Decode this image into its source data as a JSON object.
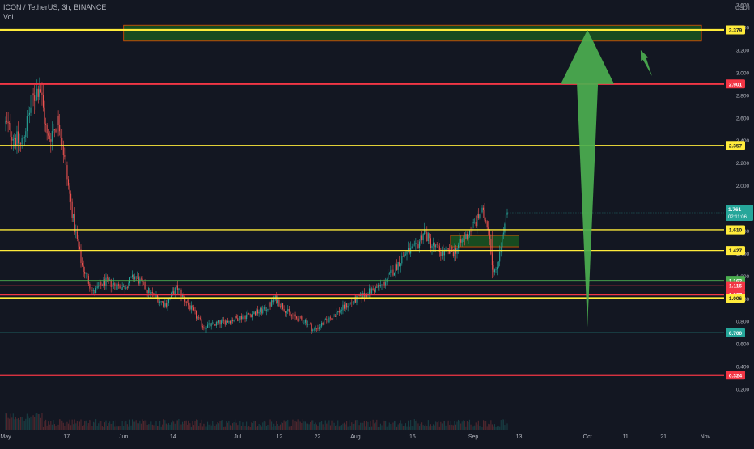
{
  "header": {
    "title": "ICON / TetherUS, 3h, BINANCE",
    "volume_label": "Vol",
    "currency": "USDT"
  },
  "chart_data": {
    "type": "candlestick",
    "symbol": "ICON / TetherUS",
    "interval": "3h",
    "exchange": "BINANCE",
    "currency": "USDT",
    "grid": false,
    "x_ticks": [
      "May",
      "17",
      "Jun",
      "14",
      "Jul",
      "12",
      "22",
      "Aug",
      "16",
      "Sep",
      "13",
      "Oct",
      "11",
      "21",
      "Nov",
      "11"
    ],
    "y_ticks": [
      "0.200",
      "0.400",
      "0.600",
      "0.800",
      "1.000",
      "1.200",
      "1.400",
      "1.600",
      "1.800",
      "2.000",
      "2.200",
      "2.400",
      "2.600",
      "2.800",
      "3.000",
      "3.200",
      "3.400",
      "3.600",
      "3.800"
    ],
    "y_range": [
      0.0,
      3.75
    ],
    "price_path": [
      {
        "date": "May 1",
        "price": 2.55
      },
      {
        "date": "May 5",
        "price": 2.35
      },
      {
        "date": "May 8",
        "price": 2.75
      },
      {
        "date": "May 10",
        "price": 2.9
      },
      {
        "date": "May 12",
        "price": 2.4
      },
      {
        "date": "May 15",
        "price": 2.6
      },
      {
        "date": "May 17",
        "price": 2.1
      },
      {
        "date": "May 19",
        "price": 1.65
      },
      {
        "date": "May 21",
        "price": 1.3
      },
      {
        "date": "May 24",
        "price": 1.05
      },
      {
        "date": "May 27",
        "price": 1.15
      },
      {
        "date": "Jun 1",
        "price": 1.1
      },
      {
        "date": "Jun 4",
        "price": 1.2
      },
      {
        "date": "Jun 8",
        "price": 1.05
      },
      {
        "date": "Jun 12",
        "price": 0.95
      },
      {
        "date": "Jun 15",
        "price": 1.1
      },
      {
        "date": "Jun 19",
        "price": 0.9
      },
      {
        "date": "Jun 22",
        "price": 0.75
      },
      {
        "date": "Jun 28",
        "price": 0.8
      },
      {
        "date": "Jul 3",
        "price": 0.85
      },
      {
        "date": "Jul 8",
        "price": 0.9
      },
      {
        "date": "Jul 11",
        "price": 1.0
      },
      {
        "date": "Jul 15",
        "price": 0.85
      },
      {
        "date": "Jul 19",
        "price": 0.8
      },
      {
        "date": "Jul 21",
        "price": 0.72
      },
      {
        "date": "Jul 25",
        "price": 0.82
      },
      {
        "date": "Jul 30",
        "price": 0.95
      },
      {
        "date": "Aug 4",
        "price": 1.05
      },
      {
        "date": "Aug 8",
        "price": 1.12
      },
      {
        "date": "Aug 11",
        "price": 1.25
      },
      {
        "date": "Aug 14",
        "price": 1.4
      },
      {
        "date": "Aug 17",
        "price": 1.45
      },
      {
        "date": "Aug 19",
        "price": 1.6
      },
      {
        "date": "Aug 21",
        "price": 1.48
      },
      {
        "date": "Aug 24",
        "price": 1.4
      },
      {
        "date": "Aug 27",
        "price": 1.42
      },
      {
        "date": "Aug 30",
        "price": 1.55
      },
      {
        "date": "Sep 2",
        "price": 1.7
      },
      {
        "date": "Sep 3",
        "price": 1.78
      },
      {
        "date": "Sep 5",
        "price": 1.65
      },
      {
        "date": "Sep 6",
        "price": 1.3
      },
      {
        "date": "Sep 7",
        "price": 1.22
      },
      {
        "date": "Sep 8",
        "price": 1.45
      },
      {
        "date": "Sep 10",
        "price": 1.761
      }
    ],
    "current_price": 1.761,
    "countdown": "02:11:06",
    "horizontal_levels": [
      {
        "price": 3.379,
        "label": "3.379",
        "style": "yellow-thick",
        "color": "#ffeb3b"
      },
      {
        "price": 2.901,
        "label": "2.901",
        "style": "red-thick",
        "color": "#f23645"
      },
      {
        "price": 2.357,
        "label": "2.357",
        "style": "yellow",
        "color": "#ffeb3b"
      },
      {
        "price": 1.611,
        "label": "1.611",
        "style": "yellow",
        "color": "#ffeb3b"
      },
      {
        "price": 1.427,
        "label": "1.427",
        "style": "yellow",
        "color": "#ffeb3b"
      },
      {
        "price": 1.162,
        "label": "1.162",
        "style": "green-thin",
        "color": "#4caf50"
      },
      {
        "price": 1.116,
        "label": "1.116",
        "style": "red-thin",
        "color": "#f23645"
      },
      {
        "price": 1.037,
        "label": "1.037",
        "style": "red-thick",
        "color": "#f23645"
      },
      {
        "price": 1.006,
        "label": "1.006",
        "style": "yellow-thick",
        "color": "#ffeb3b"
      },
      {
        "price": 0.7,
        "label": "0.700",
        "style": "teal-thin",
        "color": "#26a69a"
      },
      {
        "price": 0.324,
        "label": "0.324",
        "style": "red-thick",
        "color": "#f23645"
      }
    ],
    "extra_price_label": {
      "price": 1.61,
      "label": "1.610",
      "color": "#ffeb3b"
    },
    "zones": [
      {
        "from_date": "Jun 1",
        "to_date": "Oct 31",
        "low": 3.28,
        "high": 3.42,
        "color": "#1b5e20"
      },
      {
        "from_date": "Aug 26",
        "to_date": "Sep 13",
        "low": 1.46,
        "high": 1.56,
        "color": "#1b5e20"
      }
    ],
    "arrows": [
      {
        "from_date": "Oct 1",
        "from_price": 0.75,
        "to_date": "Oct 1",
        "to_price": 3.38,
        "color": "#4caf50",
        "size": "large"
      },
      {
        "from_date": "Oct 18",
        "from_price": 2.97,
        "to_date": "Oct 15",
        "to_price": 3.2,
        "color": "#4caf50",
        "size": "small"
      }
    ],
    "colors": {
      "background": "#131722",
      "up": "#26a69a",
      "down": "#ef5350",
      "axis_text": "#b2b5be"
    }
  }
}
